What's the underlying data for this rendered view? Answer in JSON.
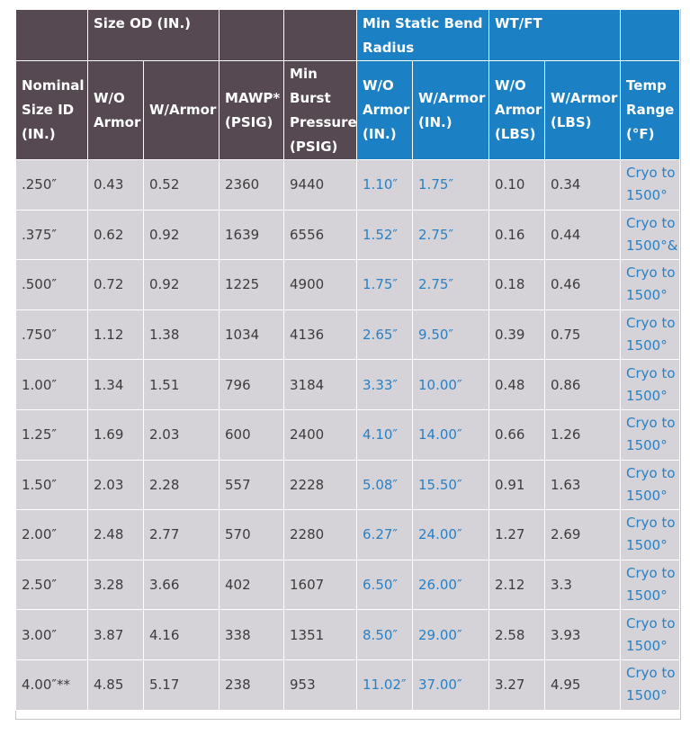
{
  "header_group": {
    "size_od": "Size OD (IN.)",
    "min_static_bend_radius": "Min Static Bend Radius",
    "wt_ft": "WT/FT"
  },
  "columns": {
    "nominal_size_id": "Nominal Size ID (IN.)",
    "od_wo_armor": "W/O Armor",
    "od_w_armor": "W/Armor",
    "mawp": "MAWP* (PSIG)",
    "min_burst": "Min Burst Pressure (PSIG)",
    "bend_wo_armor": "W/O Armor (IN.)",
    "bend_w_armor": "W/Armor (IN.)",
    "wt_wo_armor": "W/O Armor (LBS)",
    "wt_w_armor": "W/Armor (LBS)",
    "temp_range": "Temp Range (°F)"
  },
  "rows": [
    [
      ".250″",
      "0.43",
      "0.52",
      "2360",
      "9440",
      "1.10″",
      "1.75″",
      "0.10",
      "0.34",
      "Cryo to 1500°"
    ],
    [
      ".375″",
      "0.62",
      "0.92",
      "1639",
      "6556",
      "1.52″",
      "2.75″",
      "0.16",
      "0.44",
      "Cryo to 1500°&"
    ],
    [
      ".500″",
      "0.72",
      "0.92",
      "1225",
      "4900",
      "1.75″",
      "2.75″",
      "0.18",
      "0.46",
      "Cryo to 1500°"
    ],
    [
      ".750″",
      "1.12",
      "1.38",
      "1034",
      "4136",
      "2.65″",
      "9.50″",
      "0.39",
      "0.75",
      "Cryo to 1500°"
    ],
    [
      "1.00″",
      "1.34",
      "1.51",
      "796",
      "3184",
      "3.33″",
      "10.00″",
      "0.48",
      "0.86",
      "Cryo to 1500°"
    ],
    [
      "1.25″",
      "1.69",
      "2.03",
      "600",
      "2400",
      "4.10″",
      "14.00″",
      "0.66",
      "1.26",
      "Cryo to 1500°"
    ],
    [
      "1.50″",
      "2.03",
      "2.28",
      "557",
      "2228",
      "5.08″",
      "15.50″",
      "0.91",
      "1.63",
      "Cryo to 1500°"
    ],
    [
      "2.00″",
      "2.48",
      "2.77",
      "570",
      "2280",
      "6.27″",
      "24.00″",
      "1.27",
      "2.69",
      "Cryo to 1500°"
    ],
    [
      "2.50″",
      "3.28",
      "3.66",
      "402",
      "1607",
      "6.50″",
      "26.00″",
      "2.12",
      "3.3",
      "Cryo to 1500°"
    ],
    [
      "3.00″",
      "3.87",
      "4.16",
      "338",
      "1351",
      "8.50″",
      "29.00″",
      "2.58",
      "3.93",
      "Cryo to 1500°"
    ],
    [
      "4.00″**",
      "4.85",
      "5.17",
      "238",
      "953",
      "11.02″",
      "37.00″",
      "3.27",
      "4.95",
      "Cryo to 1500°"
    ]
  ],
  "colors": {
    "header_dark": "#564951",
    "header_blue": "#1b80c4",
    "row_bg": "#d6d3d8",
    "link_text": "#2980c3"
  }
}
